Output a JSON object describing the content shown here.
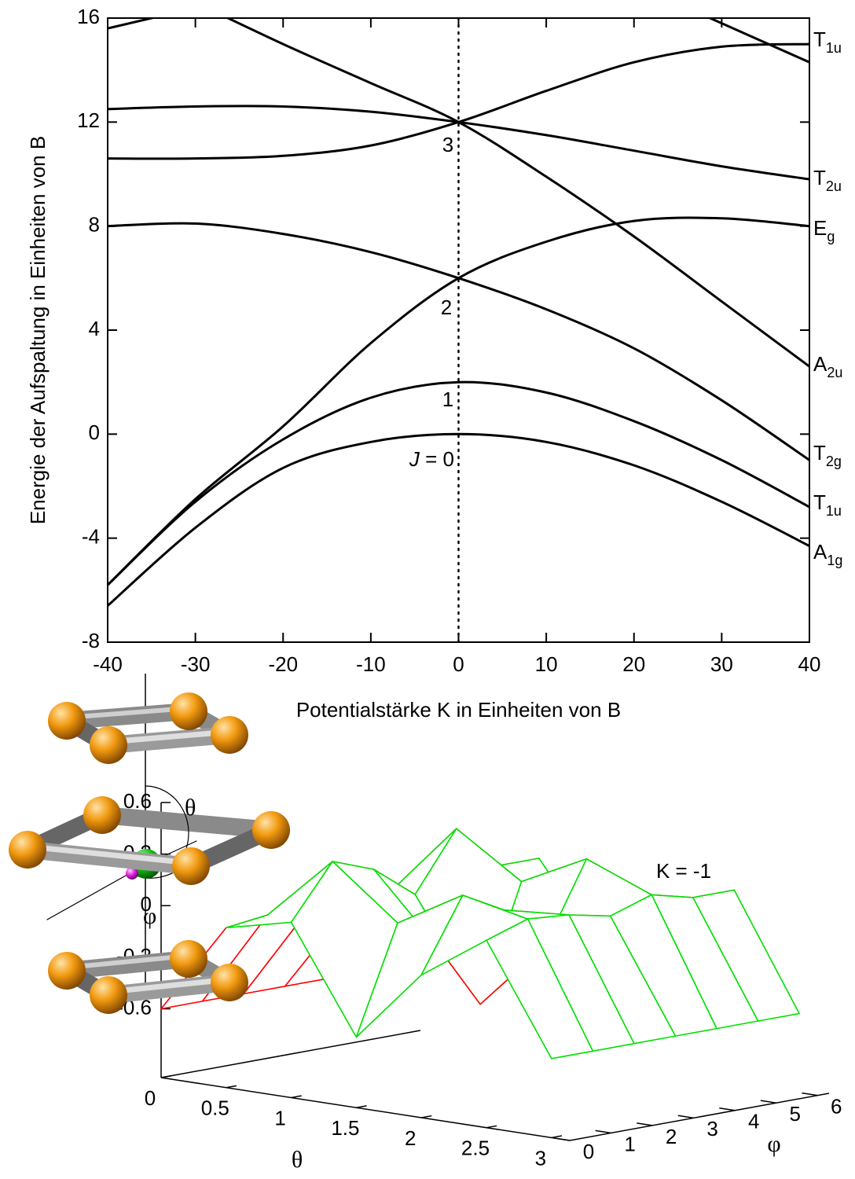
{
  "chart_data": [
    {
      "type": "line",
      "xlabel": "Potentialstärke K in Einheiten von B",
      "ylabel": "Energie der Aufspaltung in Einheiten von B",
      "x": [
        -40,
        -30,
        -20,
        -10,
        0,
        10,
        20,
        30,
        40
      ],
      "series": [
        {
          "color": "#000000",
          "values": [
            -6.6,
            -3.6,
            -1.3,
            -0.3,
            0,
            -0.3,
            -1.2,
            -2.6,
            -4.3
          ]
        },
        {
          "color": "#000000",
          "values": [
            -5.8,
            -2.6,
            -0.2,
            1.4,
            2,
            1.6,
            0.5,
            -1.0,
            -2.8
          ]
        },
        {
          "color": "#000000",
          "values": [
            -5.8,
            -2.5,
            0.3,
            3.5,
            6.0,
            7.4,
            8.2,
            8.3,
            8.0
          ]
        },
        {
          "color": "#000000",
          "values": [
            8.0,
            8.1,
            7.7,
            7.0,
            6.0,
            4.8,
            3.3,
            1.3,
            -1.0
          ]
        },
        {
          "color": "#000000",
          "values": [
            12.5,
            12.6,
            12.6,
            12.4,
            12.0,
            11.5,
            10.9,
            10.3,
            9.8
          ]
        },
        {
          "color": "#000000",
          "values": [
            10.6,
            10.6,
            10.7,
            11.1,
            12.0,
            13.2,
            14.3,
            14.9,
            15.0
          ]
        },
        {
          "color": "#000000",
          "values": [
            null,
            16.6,
            15.0,
            13.5,
            12.0,
            9.9,
            7.6,
            5.1,
            2.6
          ]
        },
        {
          "color": "#000000",
          "values": [
            15.6,
            16.4,
            null,
            null,
            null,
            null,
            null,
            null,
            null
          ]
        },
        {
          "color": "#000000",
          "values": [
            null,
            null,
            null,
            null,
            null,
            null,
            17.3,
            15.8,
            14.3
          ]
        }
      ],
      "xlim": [
        -40,
        40
      ],
      "ylim": [
        -8,
        16
      ],
      "xticks": [
        -40,
        -30,
        -20,
        -10,
        0,
        10,
        20,
        30,
        40
      ],
      "yticks": [
        -8,
        -4,
        0,
        4,
        8,
        12,
        16
      ],
      "vline": 0,
      "annotations": [
        "3",
        "2",
        "1"
      ],
      "j_label": {
        "symbol": "J",
        "text": " = 0"
      },
      "right_labels": [
        {
          "main": "T",
          "sub": "1u"
        },
        {
          "main": "T",
          "sub": "2u"
        },
        {
          "main": "E",
          "sub": "g"
        },
        {
          "main": "A",
          "sub": "2u"
        },
        {
          "main": "T",
          "sub": "2g"
        },
        {
          "main": "T",
          "sub": "1u"
        },
        {
          "main": "A",
          "sub": "1g"
        }
      ]
    },
    {
      "type": "surface",
      "title": "K = -1",
      "xlabel": "θ",
      "ylabel": "φ",
      "x": [
        0,
        0.5,
        1,
        1.5,
        2,
        2.5,
        3
      ],
      "y": [
        0,
        1,
        2,
        3,
        4,
        5,
        6
      ],
      "z": [
        [
          -0.6,
          -0.6,
          -0.6,
          -0.6,
          -0.6,
          -0.6,
          -0.6
        ],
        [
          -0.07,
          -0.04,
          -0.05,
          -0.07,
          -0.03,
          -0.06,
          -0.06
        ],
        [
          0.02,
          0.33,
          0.24,
          0.05,
          0.39,
          0.13,
          0.13
        ],
        [
          -0.59,
          0.03,
          -0.16,
          -0.53,
          0.14,
          -0.36,
          -0.37
        ],
        [
          -0.17,
          0.25,
          0.12,
          -0.13,
          0.33,
          -0.02,
          -0.02
        ],
        [
          0.09,
          0.17,
          0.15,
          0.1,
          0.18,
          0.12,
          0.12
        ],
        [
          -0.54,
          -0.54,
          -0.54,
          -0.54,
          -0.54,
          -0.54,
          -0.54
        ]
      ],
      "xlim": [
        0,
        3.14
      ],
      "ylim": [
        0,
        6.28
      ],
      "zlim": [
        -1,
        0.6
      ],
      "xticks": [
        0,
        0.5,
        1,
        1.5,
        2,
        2.5,
        3
      ],
      "yticks": [
        0,
        1,
        2,
        3,
        4,
        5,
        6
      ],
      "zticks": [
        -0.6,
        -0.3,
        0,
        0.3,
        0.6
      ],
      "color": "#00e000",
      "back_color": "#ff0000"
    }
  ],
  "inset": {
    "theta": "θ",
    "phi": "φ"
  }
}
